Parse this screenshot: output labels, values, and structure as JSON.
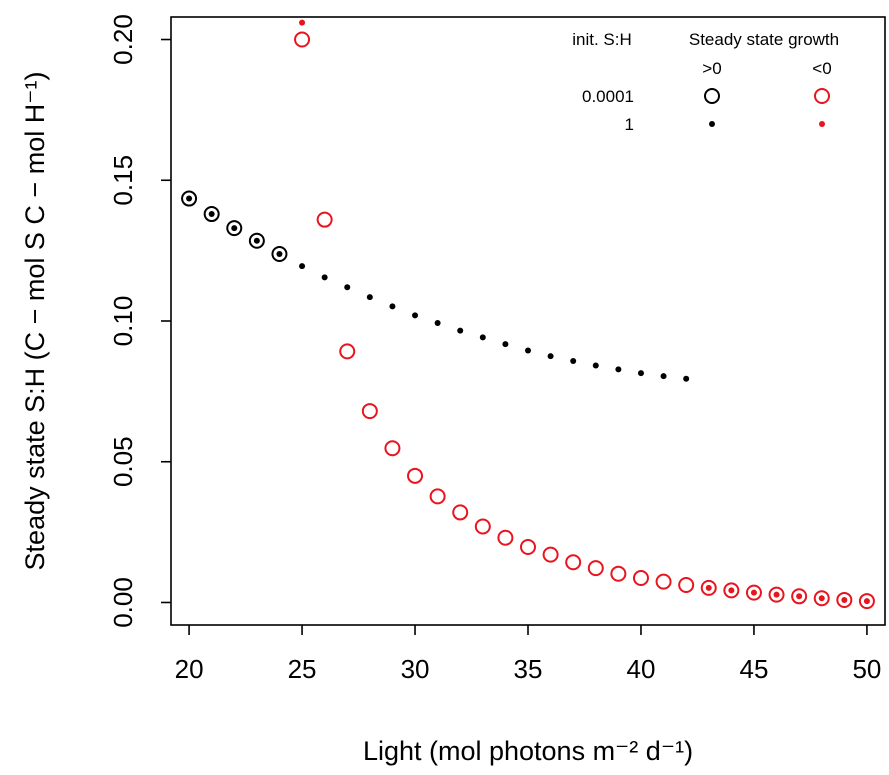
{
  "chart_data": {
    "type": "scatter",
    "xlabel": "Light (mol photons m⁻² d⁻¹)",
    "ylabel": "Steady state S:H (C − mol S C − mol H⁻¹)",
    "xlim": [
      19.2,
      50.8
    ],
    "ylim": [
      -0.008,
      0.208
    ],
    "x_ticks": [
      "20",
      "25",
      "30",
      "35",
      "40",
      "45",
      "50"
    ],
    "y_ticks": [
      "0.00",
      "0.05",
      "0.10",
      "0.15",
      "0.20"
    ],
    "legend": {
      "placement": "top-right",
      "row_header": "init. S:H",
      "col_header": "Steady state growth",
      "col_labels": [
        ">0",
        "<0"
      ],
      "row_labels": [
        "0.0001",
        "1"
      ]
    },
    "colors": {
      "positive_growth": "#000000",
      "negative_growth": "#e8141e"
    },
    "series": [
      {
        "init": "0.0001",
        "growth": ">0",
        "marker": "open-circle",
        "x": [
          20,
          21,
          22,
          23,
          24
        ],
        "y": [
          0.1435,
          0.138,
          0.133,
          0.1285,
          0.1238
        ]
      },
      {
        "init": "0.0001",
        "growth": "<0",
        "marker": "open-circle",
        "x": [
          25,
          26,
          27,
          28,
          29,
          30,
          31,
          32,
          33,
          34,
          35,
          36,
          37,
          38,
          39,
          40,
          41,
          42,
          43,
          44,
          45,
          46,
          47,
          48,
          49,
          50
        ],
        "y": [
          0.2,
          0.136,
          0.0892,
          0.068,
          0.0548,
          0.045,
          0.0377,
          0.032,
          0.027,
          0.023,
          0.0197,
          0.017,
          0.0143,
          0.0122,
          0.0102,
          0.0087,
          0.0074,
          0.0062,
          0.0052,
          0.0043,
          0.0035,
          0.0028,
          0.0022,
          0.0015,
          0.0009,
          0.0005
        ]
      },
      {
        "init": "1",
        "growth": ">0",
        "marker": "dot",
        "x": [
          20,
          21,
          22,
          23,
          24,
          25,
          26,
          27,
          28,
          29,
          30,
          31,
          32,
          33,
          34,
          35,
          36,
          37,
          38,
          39,
          40,
          41,
          42
        ],
        "y": [
          0.1435,
          0.138,
          0.133,
          0.1285,
          0.1238,
          0.1195,
          0.1155,
          0.112,
          0.1085,
          0.1052,
          0.102,
          0.0993,
          0.0966,
          0.0942,
          0.0918,
          0.0895,
          0.0875,
          0.0858,
          0.0842,
          0.0828,
          0.0815,
          0.0804,
          0.0795
        ]
      },
      {
        "init": "1",
        "growth": "<0",
        "marker": "dot",
        "x": [
          25,
          43,
          44,
          45,
          46,
          47,
          48,
          49,
          50
        ],
        "y": [
          0.206,
          0.0052,
          0.0043,
          0.0035,
          0.0028,
          0.0022,
          0.0015,
          0.0009,
          0.0005
        ]
      }
    ]
  }
}
